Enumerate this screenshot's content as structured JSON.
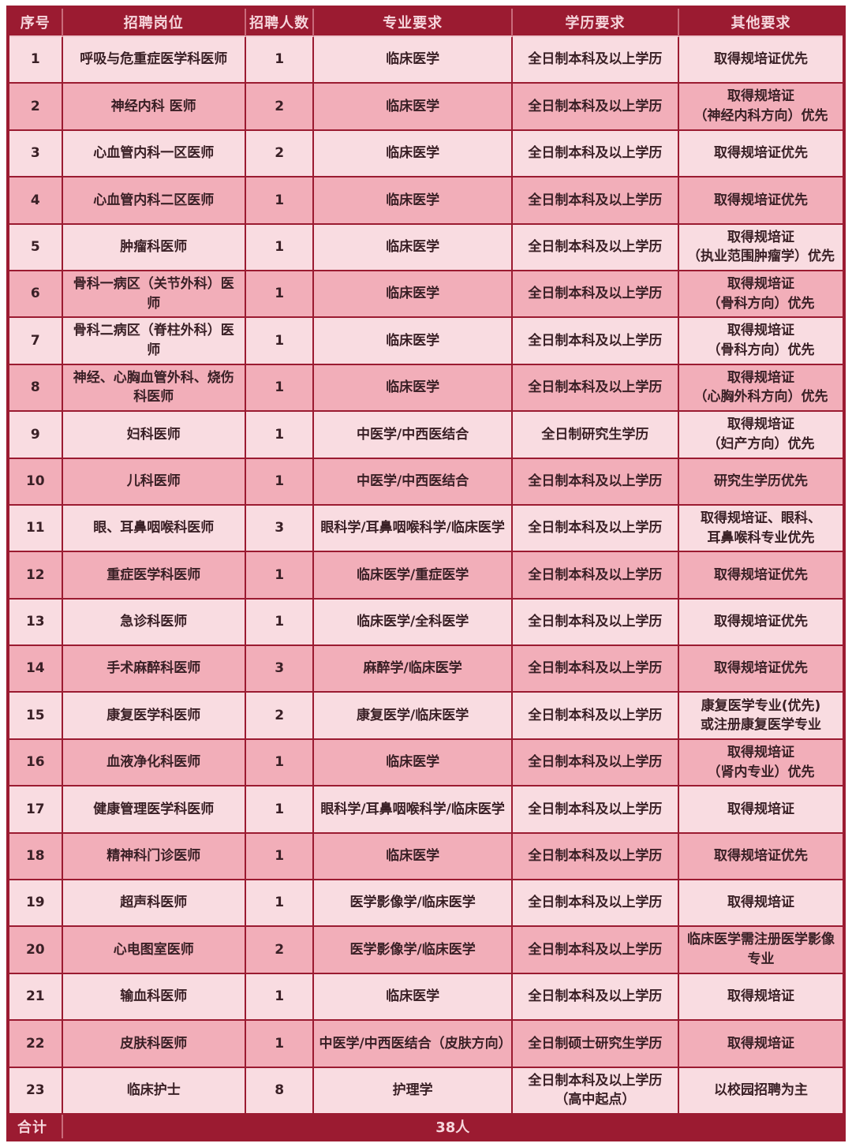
{
  "colors": {
    "maroon": "#9b1b31",
    "row_light": "#f9dce1",
    "row_dark": "#f2aeb9",
    "header_text": "#f6d6dc",
    "body_text": "#3a2026"
  },
  "table": {
    "headers": {
      "no": "序号",
      "position": "招聘岗位",
      "count": "招聘人数",
      "major": "专业要求",
      "education": "学历要求",
      "other": "其他要求"
    },
    "rows": [
      {
        "no": "1",
        "position": "呼吸与危重症医学科医师",
        "count": "1",
        "major": "临床医学",
        "education": "全日制本科及以上学历",
        "other": "取得规培证优先"
      },
      {
        "no": "2",
        "position": "神经内科 医师",
        "count": "2",
        "major": "临床医学",
        "education": "全日制本科及以上学历",
        "other": "取得规培证\n（神经内科方向）优先"
      },
      {
        "no": "3",
        "position": "心血管内科一区医师",
        "count": "2",
        "major": "临床医学",
        "education": "全日制本科及以上学历",
        "other": "取得规培证优先"
      },
      {
        "no": "4",
        "position": "心血管内科二区医师",
        "count": "1",
        "major": "临床医学",
        "education": "全日制本科及以上学历",
        "other": "取得规培证优先"
      },
      {
        "no": "5",
        "position": "肿瘤科医师",
        "count": "1",
        "major": "临床医学",
        "education": "全日制本科及以上学历",
        "other": "取得规培证\n（执业范围肿瘤学）优先"
      },
      {
        "no": "6",
        "position": "骨科一病区（关节外科）医师",
        "count": "1",
        "major": "临床医学",
        "education": "全日制本科及以上学历",
        "other": "取得规培证\n（骨科方向）优先"
      },
      {
        "no": "7",
        "position": "骨科二病区（脊柱外科）医师",
        "count": "1",
        "major": "临床医学",
        "education": "全日制本科及以上学历",
        "other": "取得规培证\n（骨科方向）优先"
      },
      {
        "no": "8",
        "position": "神经、心胸血管外科、烧伤科医师",
        "count": "1",
        "major": "临床医学",
        "education": "全日制本科及以上学历",
        "other": "取得规培证\n（心胸外科方向）优先"
      },
      {
        "no": "9",
        "position": "妇科医师",
        "count": "1",
        "major": "中医学/中西医结合",
        "education": "全日制研究生学历",
        "other": "取得规培证\n（妇产方向）优先"
      },
      {
        "no": "10",
        "position": "儿科医师",
        "count": "1",
        "major": "中医学/中西医结合",
        "education": "全日制本科及以上学历",
        "other": "研究生学历优先"
      },
      {
        "no": "11",
        "position": "眼、耳鼻咽喉科医师",
        "count": "3",
        "major": "眼科学/耳鼻咽喉科学/临床医学",
        "education": "全日制本科及以上学历",
        "other": "取得规培证、眼科、\n耳鼻喉科专业优先"
      },
      {
        "no": "12",
        "position": "重症医学科医师",
        "count": "1",
        "major": "临床医学/重症医学",
        "education": "全日制本科及以上学历",
        "other": "取得规培证优先"
      },
      {
        "no": "13",
        "position": "急诊科医师",
        "count": "1",
        "major": "临床医学/全科医学",
        "education": "全日制本科及以上学历",
        "other": "取得规培证优先"
      },
      {
        "no": "14",
        "position": "手术麻醉科医师",
        "count": "3",
        "major": "麻醉学/临床医学",
        "education": "全日制本科及以上学历",
        "other": "取得规培证优先"
      },
      {
        "no": "15",
        "position": "康复医学科医师",
        "count": "2",
        "major": "康复医学/临床医学",
        "education": "全日制本科及以上学历",
        "other": "康复医学专业(优先)\n或注册康复医学专业"
      },
      {
        "no": "16",
        "position": "血液净化科医师",
        "count": "1",
        "major": "临床医学",
        "education": "全日制本科及以上学历",
        "other": "取得规培证\n（肾内专业）优先"
      },
      {
        "no": "17",
        "position": "健康管理医学科医师",
        "count": "1",
        "major": "眼科学/耳鼻咽喉科学/临床医学",
        "education": "全日制本科及以上学历",
        "other": "取得规培证"
      },
      {
        "no": "18",
        "position": "精神科门诊医师",
        "count": "1",
        "major": "临床医学",
        "education": "全日制本科及以上学历",
        "other": "取得规培证优先"
      },
      {
        "no": "19",
        "position": "超声科医师",
        "count": "1",
        "major": "医学影像学/临床医学",
        "education": "全日制本科及以上学历",
        "other": "取得规培证"
      },
      {
        "no": "20",
        "position": "心电图室医师",
        "count": "2",
        "major": "医学影像学/临床医学",
        "education": "全日制本科及以上学历",
        "other": "临床医学需注册医学影像专业"
      },
      {
        "no": "21",
        "position": "输血科医师",
        "count": "1",
        "major": "临床医学",
        "education": "全日制本科及以上学历",
        "other": "取得规培证"
      },
      {
        "no": "22",
        "position": "皮肤科医师",
        "count": "1",
        "major": "中医学/中西医结合（皮肤方向）",
        "education": "全日制硕士研究生学历",
        "other": "取得规培证"
      },
      {
        "no": "23",
        "position": "临床护士",
        "count": "8",
        "major": "护理学",
        "education": "全日制本科及以上学历\n（高中起点）",
        "other": "以校园招聘为主"
      }
    ],
    "footer": {
      "label": "合计",
      "total": "38人"
    }
  }
}
